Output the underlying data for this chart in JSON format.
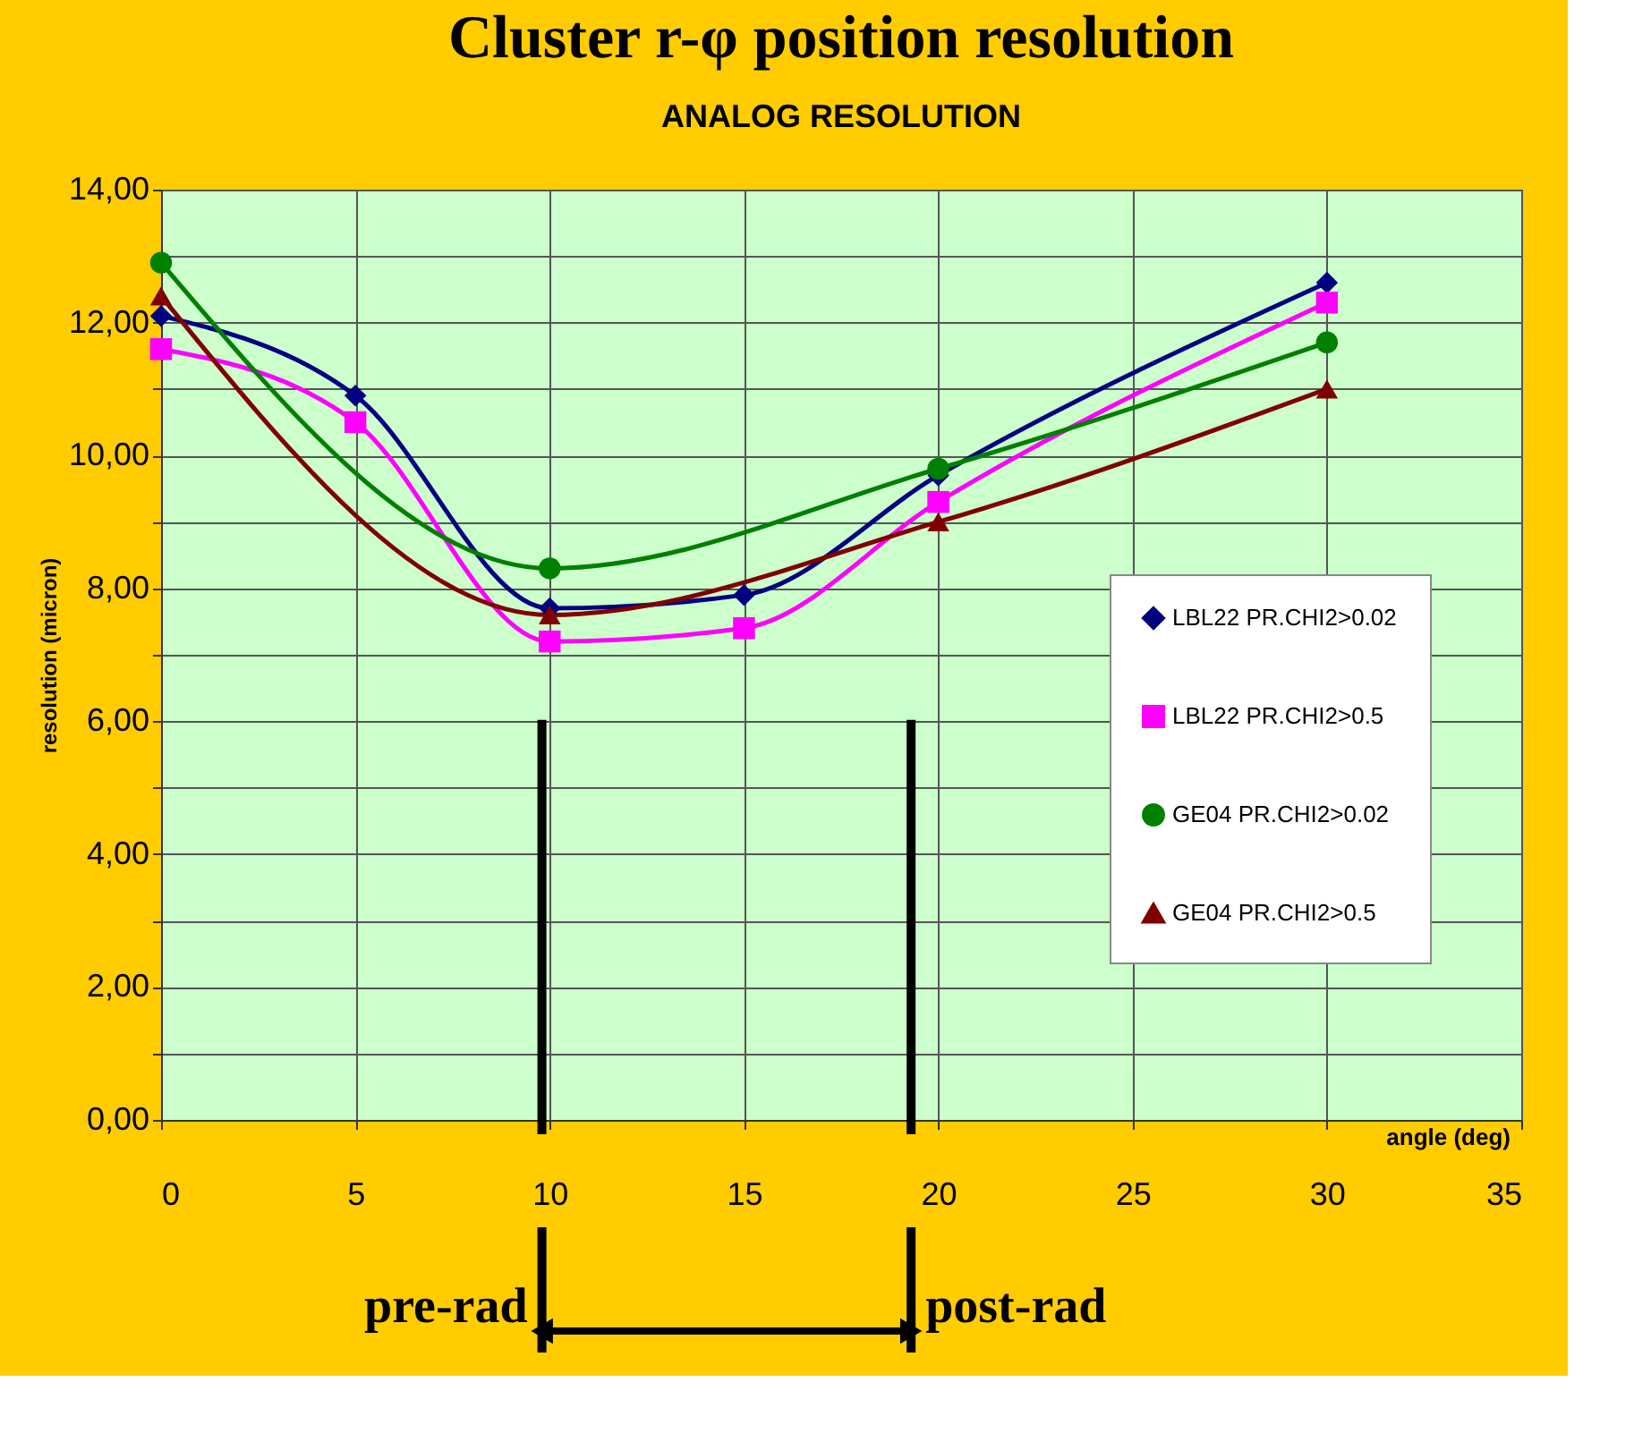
{
  "chart_data": {
    "type": "line",
    "title": "Cluster r-φ position resolution",
    "subtitle": "ANALOG RESOLUTION",
    "xlabel": "angle (deg)",
    "ylabel": "resolution (micron)",
    "series": [
      {
        "name": "LBL22 PR.CHI2>0.02",
        "color": "#000080",
        "marker": "diamond",
        "x": [
          0,
          5,
          10,
          15,
          20,
          30
        ],
        "values": [
          12.1,
          10.9,
          7.7,
          7.9,
          9.7,
          12.6
        ]
      },
      {
        "name": "LBL22 PR.CHI2>0.5",
        "color": "#ff00ff",
        "marker": "square",
        "x": [
          0,
          5,
          10,
          15,
          20,
          30
        ],
        "values": [
          11.6,
          10.5,
          7.2,
          7.4,
          9.3,
          12.3
        ]
      },
      {
        "name": "GE04 PR.CHI2>0.02",
        "color": "#008000",
        "marker": "circle",
        "x": [
          0,
          10,
          20,
          30
        ],
        "values": [
          12.9,
          8.3,
          9.8,
          11.7
        ]
      },
      {
        "name": "GE04 PR.CHI2>0.5",
        "color": "#800000",
        "marker": "triangle",
        "x": [
          0,
          10,
          20,
          30
        ],
        "values": [
          12.4,
          7.6,
          9.0,
          11.0
        ]
      }
    ],
    "xlim": [
      0,
      35
    ],
    "xticks": [
      0,
      5,
      10,
      15,
      20,
      25,
      30,
      35
    ],
    "ylim": [
      0,
      14
    ],
    "yticks": [
      {
        "value": 0,
        "label": "0,00"
      },
      {
        "value": 1,
        "label": null
      },
      {
        "value": 2,
        "label": "2,00"
      },
      {
        "value": 3,
        "label": null
      },
      {
        "value": 4,
        "label": "4,00"
      },
      {
        "value": 5,
        "label": null
      },
      {
        "value": 6,
        "label": "6,00"
      },
      {
        "value": 7,
        "label": null
      },
      {
        "value": 8,
        "label": "8,00"
      },
      {
        "value": 9,
        "label": null
      },
      {
        "value": 10,
        "label": "10,00"
      },
      {
        "value": 11,
        "label": null
      },
      {
        "value": 12,
        "label": "12,00"
      },
      {
        "value": 13,
        "label": null
      },
      {
        "value": 14,
        "label": "14,00"
      }
    ],
    "ref_lines": [
      {
        "axis": "x",
        "value": 9.8,
        "color": "#000000"
      },
      {
        "axis": "x",
        "value": 19.3,
        "color": "#000000"
      }
    ],
    "annotations": [
      "pre-rad",
      "post-rad"
    ],
    "grid": true,
    "legend": "right",
    "line_style": "solid"
  }
}
